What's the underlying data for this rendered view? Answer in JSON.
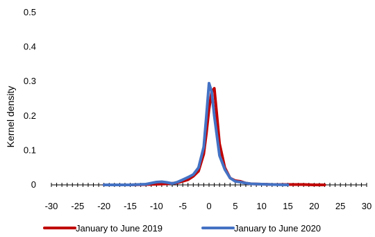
{
  "chart_data": {
    "type": "line",
    "title": "",
    "xlabel": "",
    "ylabel": "Kernel density",
    "xlim": [
      -30,
      30
    ],
    "ylim": [
      0,
      0.5
    ],
    "xticks": [
      -30,
      -25,
      -20,
      -15,
      -10,
      -5,
      0,
      5,
      10,
      15,
      20,
      25,
      30
    ],
    "yticks": [
      0,
      0.1,
      0.2,
      0.3,
      0.4,
      0.5
    ],
    "x_minor_tick_step": 1,
    "grid": false,
    "legend_position": "bottom",
    "series": [
      {
        "name": "January to June 2019",
        "color": "#c00000",
        "x": [
          -20,
          -15,
          -12,
          -10,
          -8,
          -6,
          -4,
          -3,
          -2,
          -1,
          -0.5,
          0,
          0.5,
          1,
          1.5,
          2,
          3,
          4,
          5,
          6,
          7,
          8,
          10,
          12,
          15,
          18,
          20,
          22
        ],
        "y": [
          0,
          0,
          0.001,
          0.002,
          0.003,
          0.006,
          0.015,
          0.025,
          0.04,
          0.09,
          0.15,
          0.22,
          0.27,
          0.28,
          0.2,
          0.12,
          0.05,
          0.02,
          0.012,
          0.01,
          0.005,
          0.003,
          0.002,
          0.001,
          0.001,
          0.001,
          0,
          0
        ]
      },
      {
        "name": "January to June 2020",
        "color": "#4472c4",
        "x": [
          -20,
          -15,
          -12,
          -10,
          -9,
          -8,
          -7,
          -6,
          -5,
          -4,
          -3,
          -2,
          -1,
          -0.5,
          0,
          0.5,
          1,
          2,
          3,
          4,
          5,
          6,
          7,
          8,
          10,
          12,
          15
        ],
        "y": [
          0,
          0,
          0.002,
          0.008,
          0.009,
          0.007,
          0.004,
          0.008,
          0.015,
          0.022,
          0.03,
          0.05,
          0.11,
          0.2,
          0.295,
          0.27,
          0.2,
          0.085,
          0.045,
          0.02,
          0.01,
          0.008,
          0.005,
          0.003,
          0.002,
          0.001,
          0
        ]
      }
    ]
  }
}
